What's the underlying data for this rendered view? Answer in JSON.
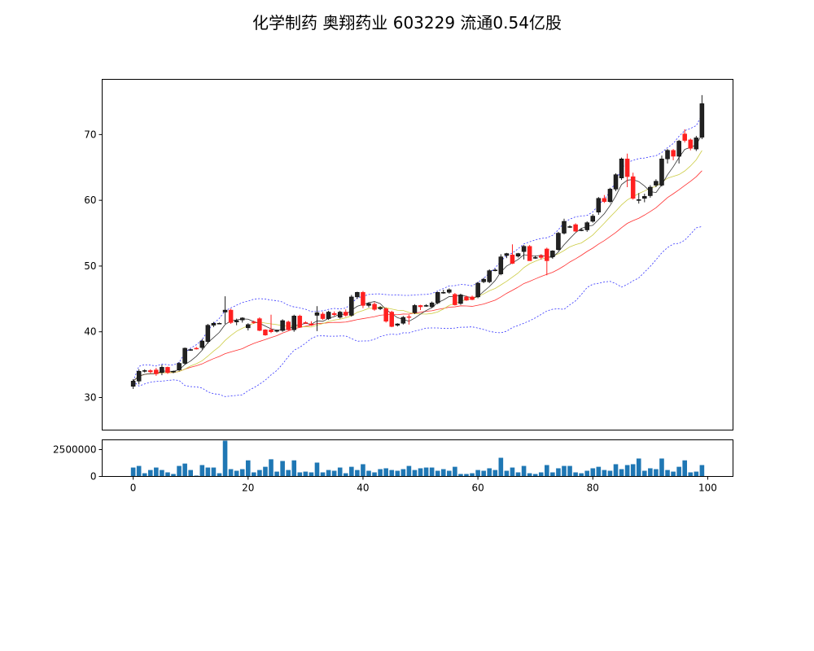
{
  "chart_data": {
    "type": "candlestick",
    "title": "化学制药 奥翔药业 603229 流通0.54亿股",
    "xlim": [
      -5.4,
      104.4
    ],
    "ylim": [
      25.05,
      78.4
    ],
    "volume_ylim": [
      0,
      3410000
    ],
    "x_ticks": [
      "0",
      "20",
      "40",
      "60",
      "80",
      "100"
    ],
    "y_ticks": [
      "30",
      "40",
      "50",
      "60",
      "70"
    ],
    "volume_ticks": [
      "0",
      "2500000"
    ],
    "colors": {
      "up": "#222222",
      "down": "#ff2020",
      "ma5": "#333333",
      "ma10": "#cccc44",
      "ma20": "#ff3030",
      "boll": "#3333ff",
      "volume": "#1f77b4"
    },
    "ohlc": [
      [
        31.7,
        32.8,
        31.3,
        32.5
      ],
      [
        32.5,
        34.3,
        32,
        34
      ],
      [
        34,
        34.3,
        33.8,
        34.1
      ],
      [
        34.1,
        34.3,
        33.7,
        33.9
      ],
      [
        34.2,
        34.5,
        33.3,
        33.6
      ],
      [
        33.8,
        35,
        33.4,
        34.6
      ],
      [
        34.6,
        34.7,
        33.6,
        33.8
      ],
      [
        33.9,
        34.1,
        33.7,
        34
      ],
      [
        34.2,
        35.4,
        34,
        35.2
      ],
      [
        35.2,
        37.6,
        35,
        37.5
      ],
      [
        37.3,
        37.4,
        37.1,
        37.3
      ],
      [
        37.5,
        37.7,
        37.3,
        37.4
      ],
      [
        37.6,
        38.9,
        37.3,
        38.6
      ],
      [
        38.5,
        41.2,
        38.2,
        41
      ],
      [
        41,
        41.5,
        40.7,
        41.3
      ],
      [
        41.3,
        41.4,
        41.2,
        41.3
      ],
      [
        43,
        45.4,
        41.2,
        43.3
      ],
      [
        43.3,
        43.5,
        41.2,
        41.4
      ],
      [
        41.5,
        42,
        41,
        41.7
      ],
      [
        41.8,
        42.2,
        41.4,
        42.1
      ],
      [
        40.6,
        41.3,
        40.2,
        41.1
      ],
      [
        41.5,
        41.7,
        41.2,
        41.4
      ],
      [
        42,
        42.2,
        40.1,
        40.2
      ],
      [
        40.3,
        40.4,
        39.4,
        39.5
      ],
      [
        40.3,
        42.6,
        39.8,
        40
      ],
      [
        40.1,
        40.3,
        39.9,
        40.2
      ],
      [
        40.2,
        41.9,
        40,
        41.7
      ],
      [
        41.5,
        41.7,
        40.2,
        40.3
      ],
      [
        40.3,
        42.6,
        40,
        42.4
      ],
      [
        42.4,
        42.6,
        40.6,
        40.7
      ],
      [
        41.4,
        41.6,
        41.2,
        41.3
      ],
      [
        41.2,
        41.6,
        40.9,
        41
      ],
      [
        42.5,
        43.9,
        40.1,
        42.9
      ],
      [
        42.7,
        43,
        41.8,
        42
      ],
      [
        42,
        43.2,
        41.8,
        43
      ],
      [
        42.8,
        43.1,
        42.4,
        42.6
      ],
      [
        42.2,
        43.2,
        42,
        43
      ],
      [
        43,
        43.4,
        42.3,
        42.5
      ],
      [
        42.5,
        45.6,
        42.3,
        45.3
      ],
      [
        45.3,
        46.1,
        45,
        46
      ],
      [
        46,
        46.2,
        43.6,
        44
      ],
      [
        44,
        44.5,
        43.7,
        44.3
      ],
      [
        44.2,
        44.5,
        43.2,
        43.4
      ],
      [
        43.5,
        43.9,
        43.3,
        43.7
      ],
      [
        43.5,
        43.7,
        41.4,
        41.6
      ],
      [
        43,
        43.2,
        40.7,
        40.8
      ],
      [
        41,
        41.3,
        40.8,
        41.2
      ],
      [
        41.3,
        42.4,
        41.1,
        42.2
      ],
      [
        42.3,
        42.6,
        41.1,
        42.2
      ],
      [
        42.9,
        44.2,
        42.7,
        44
      ],
      [
        44,
        44.1,
        43.3,
        43.8
      ],
      [
        44,
        44.2,
        43.8,
        44
      ],
      [
        43.8,
        44.6,
        43.6,
        44.4
      ],
      [
        44.4,
        46.1,
        44.2,
        46
      ],
      [
        46,
        46.4,
        45.8,
        46
      ],
      [
        46,
        46.6,
        45.8,
        46.4
      ],
      [
        45.7,
        45.9,
        44,
        44.1
      ],
      [
        44.3,
        45.8,
        44.1,
        45.6
      ],
      [
        45.3,
        45.5,
        44.7,
        44.8
      ],
      [
        45.3,
        45.5,
        44.8,
        44.9
      ],
      [
        45.3,
        47.6,
        45.1,
        47.4
      ],
      [
        47.6,
        48.2,
        47.4,
        48
      ],
      [
        47.6,
        49.5,
        47.4,
        49.3
      ],
      [
        49.4,
        49.6,
        49.2,
        49.4
      ],
      [
        48.8,
        51.8,
        48.6,
        51.4
      ],
      [
        51.6,
        52,
        51.2,
        51.9
      ],
      [
        51.7,
        53.3,
        50.3,
        50.4
      ],
      [
        51.5,
        52,
        51.3,
        51.9
      ],
      [
        52.2,
        53.2,
        51,
        53
      ],
      [
        53,
        53.2,
        50.8,
        50.8
      ],
      [
        51.3,
        51.6,
        51.1,
        51.3
      ],
      [
        51.6,
        51.8,
        51,
        51.3
      ],
      [
        52.6,
        52.8,
        48.6,
        50.8
      ],
      [
        51.4,
        52.4,
        51.1,
        52.3
      ],
      [
        52.5,
        55.2,
        52.3,
        55
      ],
      [
        55,
        57.2,
        54.8,
        56.8
      ],
      [
        56,
        56.2,
        55.8,
        56
      ],
      [
        56.3,
        56.5,
        55.2,
        55.3
      ],
      [
        55.5,
        55.8,
        55.3,
        55.5
      ],
      [
        55.5,
        56.8,
        55.2,
        56.6
      ],
      [
        56.8,
        57.9,
        56.6,
        57.6
      ],
      [
        58.2,
        60.5,
        57.8,
        60.3
      ],
      [
        60.3,
        60.8,
        59.6,
        59.8
      ],
      [
        59.8,
        61.9,
        59.6,
        61.7
      ],
      [
        61.7,
        64.1,
        61.4,
        63.9
      ],
      [
        63.4,
        66.5,
        63.1,
        66.3
      ],
      [
        66.3,
        67.1,
        62,
        63.6
      ],
      [
        63.6,
        64.2,
        60.1,
        60.3
      ],
      [
        60.1,
        61.1,
        59.5,
        60.1
      ],
      [
        60.3,
        61,
        59.7,
        60.6
      ],
      [
        60.7,
        62.3,
        60.4,
        62
      ],
      [
        62.3,
        63.2,
        62,
        62.9
      ],
      [
        62.3,
        66.8,
        62.1,
        66.3
      ],
      [
        66.3,
        67.8,
        65.6,
        67.6
      ],
      [
        67.6,
        67.8,
        66.1,
        66.7
      ],
      [
        66.7,
        69.2,
        65.6,
        69
      ],
      [
        70.1,
        70.8,
        68.8,
        69.1
      ],
      [
        69.2,
        69.4,
        67.6,
        67.9
      ],
      [
        67.8,
        69.8,
        67.5,
        69.5
      ],
      [
        69.6,
        76,
        69.3,
        74.7
      ]
    ],
    "volume": [
      830000,
      980000,
      300000,
      600000,
      830000,
      600000,
      380000,
      230000,
      980000,
      1200000,
      600000,
      80000,
      1060000,
      830000,
      830000,
      300000,
      3330000,
      680000,
      530000,
      680000,
      1500000,
      380000,
      600000,
      900000,
      1600000,
      450000,
      1440000,
      600000,
      1500000,
      380000,
      450000,
      380000,
      1290000,
      380000,
      600000,
      530000,
      830000,
      300000,
      900000,
      600000,
      1140000,
      530000,
      380000,
      680000,
      760000,
      600000,
      530000,
      680000,
      980000,
      600000,
      760000,
      830000,
      830000,
      530000,
      680000,
      530000,
      900000,
      230000,
      230000,
      300000,
      600000,
      530000,
      760000,
      600000,
      1740000,
      530000,
      830000,
      380000,
      980000,
      300000,
      230000,
      380000,
      1060000,
      380000,
      760000,
      980000,
      980000,
      380000,
      300000,
      530000,
      760000,
      900000,
      600000,
      530000,
      1140000,
      680000,
      1060000,
      1140000,
      1670000,
      530000,
      760000,
      680000,
      1670000,
      600000,
      450000,
      900000,
      1500000,
      380000,
      450000,
      1060000
    ]
  }
}
